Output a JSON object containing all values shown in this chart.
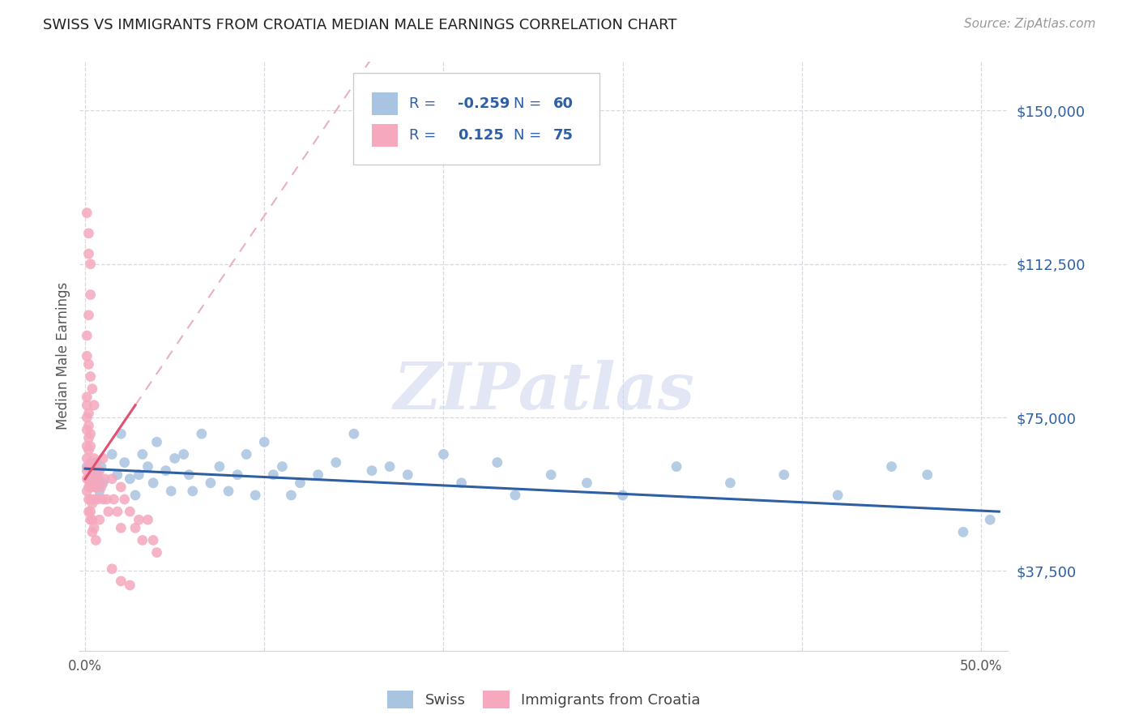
{
  "title": "SWISS VS IMMIGRANTS FROM CROATIA MEDIAN MALE EARNINGS CORRELATION CHART",
  "source": "Source: ZipAtlas.com",
  "ylabel": "Median Male Earnings",
  "watermark": "ZIPatlas",
  "y_ticks": [
    37500,
    75000,
    112500,
    150000
  ],
  "y_tick_labels": [
    "$37,500",
    "$75,000",
    "$112,500",
    "$150,000"
  ],
  "y_min": 18000,
  "y_max": 162000,
  "x_min": -0.003,
  "x_max": 0.515,
  "swiss_color": "#a8c4e0",
  "swiss_line_color": "#2e5fa3",
  "croatia_color": "#f5a8be",
  "croatia_line_color": "#e05070",
  "dashed_line_color": "#e8b0c0",
  "swiss_scatter_x": [
    0.001,
    0.002,
    0.003,
    0.004,
    0.005,
    0.006,
    0.007,
    0.008,
    0.009,
    0.01,
    0.015,
    0.018,
    0.02,
    0.022,
    0.025,
    0.028,
    0.03,
    0.032,
    0.035,
    0.038,
    0.04,
    0.045,
    0.048,
    0.05,
    0.055,
    0.058,
    0.06,
    0.065,
    0.07,
    0.075,
    0.08,
    0.085,
    0.09,
    0.095,
    0.1,
    0.105,
    0.11,
    0.115,
    0.12,
    0.13,
    0.14,
    0.15,
    0.16,
    0.17,
    0.18,
    0.2,
    0.21,
    0.23,
    0.24,
    0.26,
    0.28,
    0.3,
    0.33,
    0.36,
    0.39,
    0.42,
    0.45,
    0.47,
    0.49,
    0.505
  ],
  "swiss_scatter_y": [
    63000,
    60000,
    58000,
    62000,
    59000,
    64000,
    61000,
    57000,
    63000,
    59000,
    66000,
    61000,
    71000,
    64000,
    60000,
    56000,
    61000,
    66000,
    63000,
    59000,
    69000,
    62000,
    57000,
    65000,
    66000,
    61000,
    57000,
    71000,
    59000,
    63000,
    57000,
    61000,
    66000,
    56000,
    69000,
    61000,
    63000,
    56000,
    59000,
    61000,
    64000,
    71000,
    62000,
    63000,
    61000,
    66000,
    59000,
    64000,
    56000,
    61000,
    59000,
    56000,
    63000,
    59000,
    61000,
    56000,
    63000,
    61000,
    47000,
    50000
  ],
  "croatia_scatter_x": [
    0.001,
    0.001,
    0.001,
    0.001,
    0.001,
    0.001,
    0.001,
    0.001,
    0.001,
    0.002,
    0.002,
    0.002,
    0.002,
    0.002,
    0.002,
    0.002,
    0.002,
    0.002,
    0.003,
    0.003,
    0.003,
    0.003,
    0.003,
    0.003,
    0.003,
    0.004,
    0.004,
    0.004,
    0.004,
    0.004,
    0.005,
    0.005,
    0.005,
    0.005,
    0.006,
    0.006,
    0.006,
    0.007,
    0.007,
    0.008,
    0.008,
    0.009,
    0.01,
    0.01,
    0.011,
    0.012,
    0.013,
    0.015,
    0.016,
    0.018,
    0.02,
    0.02,
    0.022,
    0.025,
    0.028,
    0.03,
    0.032,
    0.035,
    0.038,
    0.04,
    0.001,
    0.002,
    0.002,
    0.003,
    0.001,
    0.002,
    0.003,
    0.001,
    0.002,
    0.003,
    0.004,
    0.005,
    0.015,
    0.02,
    0.025
  ],
  "croatia_scatter_y": [
    62000,
    65000,
    68000,
    72000,
    75000,
    78000,
    80000,
    60000,
    57000,
    63000,
    67000,
    70000,
    73000,
    76000,
    58000,
    55000,
    52000,
    60000,
    64000,
    68000,
    71000,
    55000,
    52000,
    58000,
    50000,
    62000,
    58000,
    54000,
    50000,
    47000,
    65000,
    60000,
    55000,
    48000,
    63000,
    58000,
    45000,
    60000,
    55000,
    62000,
    50000,
    58000,
    65000,
    55000,
    60000,
    55000,
    52000,
    60000,
    55000,
    52000,
    58000,
    48000,
    55000,
    52000,
    48000,
    50000,
    45000,
    50000,
    45000,
    42000,
    125000,
    120000,
    115000,
    112500,
    95000,
    100000,
    105000,
    90000,
    88000,
    85000,
    82000,
    78000,
    38000,
    35000,
    34000
  ]
}
